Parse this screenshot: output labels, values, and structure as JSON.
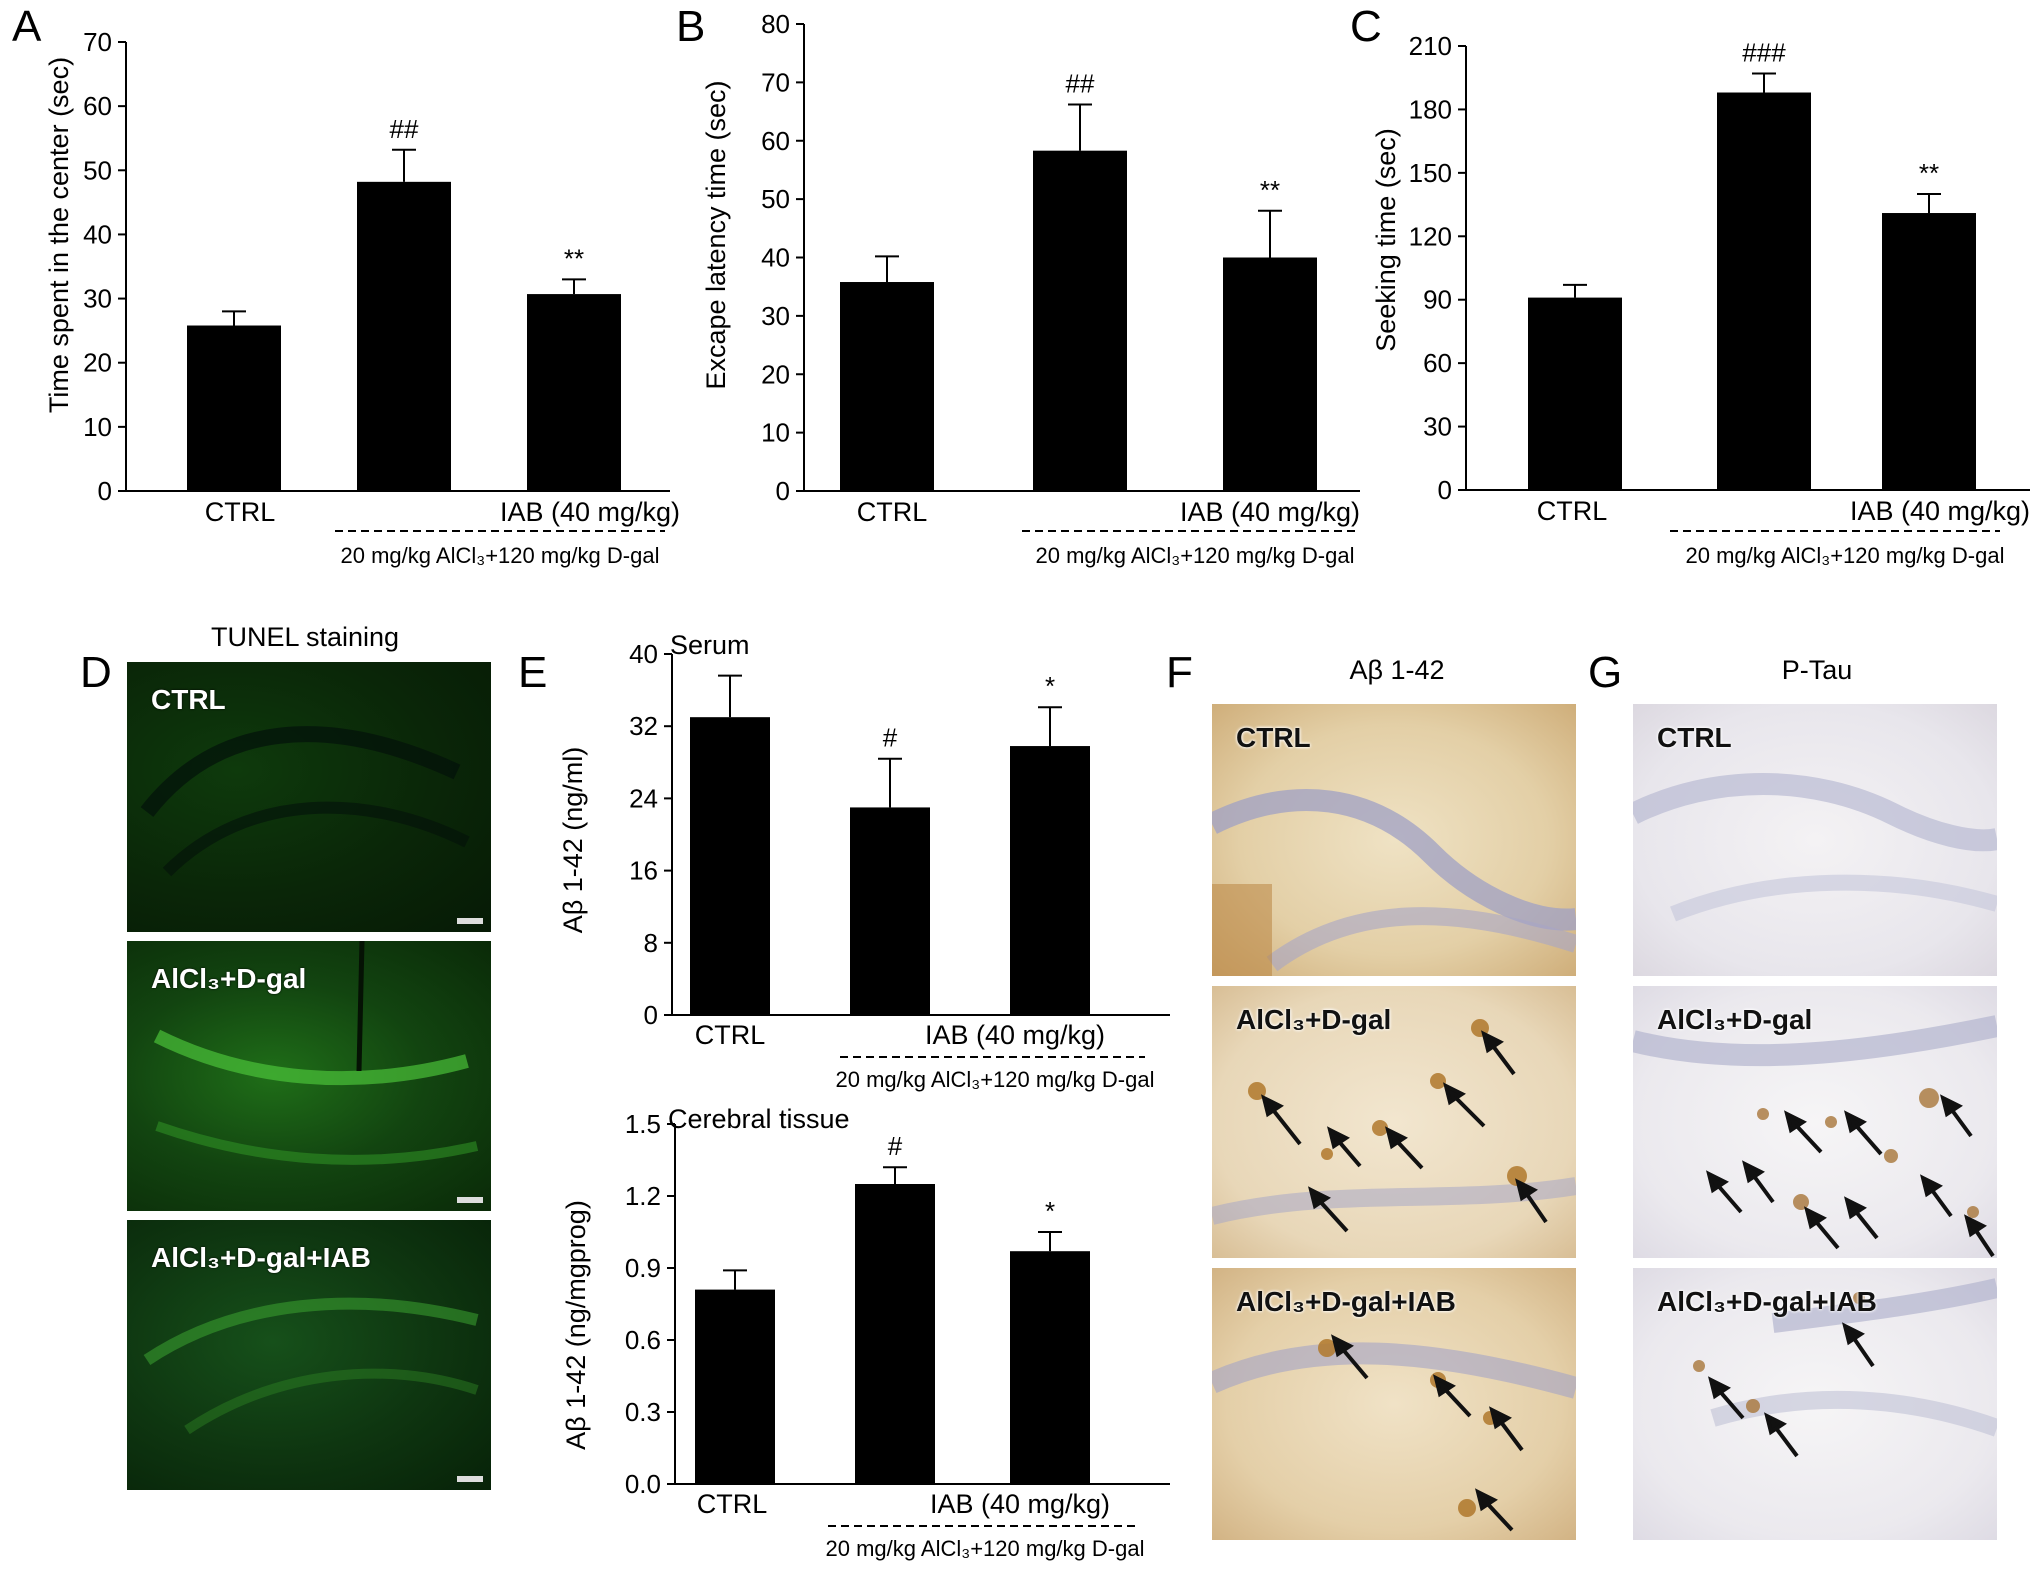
{
  "panel_letters": {
    "A": "A",
    "B": "B",
    "C": "C",
    "D": "D",
    "E": "E",
    "F": "F",
    "G": "G"
  },
  "chart_data": [
    {
      "panel": "A",
      "type": "bar",
      "categories": [
        "CTRL",
        "",
        "IAB (40 mg/kg)"
      ],
      "values": [
        25.8,
        48.2,
        30.7
      ],
      "errors": [
        2.2,
        5.0,
        2.3
      ],
      "annotations": [
        "",
        "##",
        "**"
      ],
      "ylabel": "Time spent in the center (sec)",
      "ylim": [
        0,
        70
      ],
      "yticks": [
        0,
        10,
        20,
        30,
        40,
        50,
        60,
        70
      ],
      "group_label": "20 mg/kg AlCl₃+120 mg/kg D-gal"
    },
    {
      "panel": "B",
      "type": "bar",
      "categories": [
        "CTRL",
        "",
        "IAB (40 mg/kg)"
      ],
      "values": [
        35.8,
        58.3,
        40.0
      ],
      "errors": [
        4.4,
        7.9,
        8.0
      ],
      "annotations": [
        "",
        "##",
        "**"
      ],
      "ylabel": "Excape latency time (sec)",
      "ylim": [
        0,
        80
      ],
      "yticks": [
        0,
        10,
        20,
        30,
        40,
        50,
        60,
        70,
        80
      ],
      "group_label": "20 mg/kg AlCl₃+120 mg/kg D-gal"
    },
    {
      "panel": "C",
      "type": "bar",
      "categories": [
        "CTRL",
        "",
        "IAB (40 mg/kg)"
      ],
      "values": [
        91,
        188,
        131
      ],
      "errors": [
        6,
        9,
        9
      ],
      "annotations": [
        "",
        "###",
        "**"
      ],
      "ylabel": "Seeking time (sec)",
      "ylim": [
        0,
        210
      ],
      "yticks": [
        0,
        30,
        60,
        90,
        120,
        150,
        180,
        210
      ],
      "group_label": "20 mg/kg AlCl₃+120 mg/kg D-gal"
    },
    {
      "panel": "E",
      "type": "bar",
      "title": "Serum",
      "categories": [
        "CTRL",
        "",
        "IAB (40 mg/kg)"
      ],
      "values": [
        33.0,
        23.0,
        29.8
      ],
      "errors": [
        4.6,
        5.4,
        4.3
      ],
      "annotations": [
        "",
        "#",
        "*"
      ],
      "ylabel": "Aβ 1-42 (ng/ml)",
      "ylim": [
        0,
        40
      ],
      "yticks": [
        0,
        8,
        16,
        24,
        32,
        40
      ],
      "group_label": "20 mg/kg AlCl₃+120 mg/kg D-gal"
    },
    {
      "panel": "E",
      "type": "bar",
      "title": "Cerebral tissue",
      "categories": [
        "CTRL",
        "",
        "IAB (40 mg/kg)"
      ],
      "values": [
        0.81,
        1.25,
        0.97
      ],
      "errors": [
        0.08,
        0.07,
        0.08
      ],
      "annotations": [
        "",
        "#",
        "*"
      ],
      "ylabel": "Aβ 1-42 (ng/mgprog)",
      "ylim": [
        0,
        1.5
      ],
      "yticks": [
        "0.0",
        "0.3",
        "0.6",
        "0.9",
        "1.2",
        "1.5"
      ],
      "group_label": "20 mg/kg AlCl₃+120 mg/kg D-gal"
    }
  ],
  "panel_d": {
    "title": "TUNEL staining",
    "images": [
      "CTRL",
      "AlCl₃+D-gal",
      "AlCl₃+D-gal+IAB"
    ]
  },
  "panel_f": {
    "title": "Aβ 1-42",
    "images": [
      "CTRL",
      "AlCl₃+D-gal",
      "AlCl₃+D-gal+IAB"
    ]
  },
  "panel_g": {
    "title": "P-Tau",
    "images": [
      "CTRL",
      "AlCl₃+D-gal",
      "AlCl₃+D-gal+IAB"
    ]
  }
}
